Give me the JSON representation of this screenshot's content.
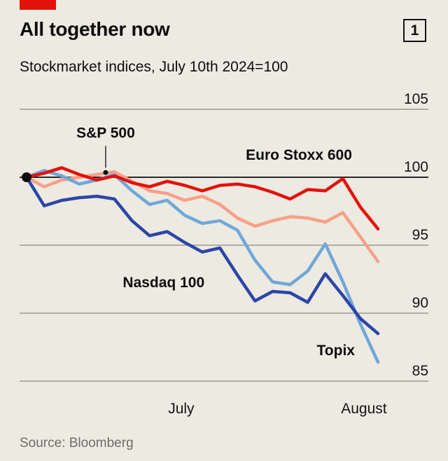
{
  "header": {
    "title": "All together now",
    "figure_number": "1",
    "subtitle": "Stockmarket indices, July 10th 2024=100"
  },
  "footer": {
    "source": "Source: Bloomberg"
  },
  "colors": {
    "background": "#ECEAE1",
    "economist_red": "#E3120B",
    "grid": "#B0ADA1",
    "baseline": "#0F0F0F",
    "text": "#0D0D0D",
    "source_text": "#6E6C66"
  },
  "chart_data": {
    "type": "line",
    "title": "All together now",
    "subtitle": "Stockmarket indices, July 10th 2024=100",
    "index_note": "July 10th 2024=100",
    "ylim": [
      84,
      106
    ],
    "yticks": [
      105,
      100,
      95,
      90,
      85
    ],
    "baseline_value": 100,
    "grid": true,
    "legend_position": "annotations-on-chart",
    "x_axis_labels": [
      {
        "text": "July",
        "x_index": 8.8
      },
      {
        "text": "August",
        "x_index": 19.2
      }
    ],
    "start_marker": {
      "x_index": 0,
      "value": 100
    },
    "series": [
      {
        "name": "S&P 500",
        "color": "#F7A088",
        "values": [
          100,
          99.3,
          99.8,
          100.0,
          100.2,
          100.4,
          99.7,
          99.0,
          98.8,
          98.3,
          98.6,
          98.0,
          97.0,
          96.4,
          96.8,
          97.1,
          97.0,
          96.7,
          97.4,
          95.6,
          93.8
        ]
      },
      {
        "name": "Topix",
        "color": "#6FA7DB",
        "values": [
          100,
          100.5,
          100.1,
          99.5,
          99.8,
          100.2,
          99.0,
          98.0,
          98.3,
          97.2,
          96.6,
          96.8,
          96.1,
          93.9,
          92.3,
          92.1,
          93.1,
          95.1,
          92.3,
          89.2,
          86.4
        ]
      },
      {
        "name": "Nasdaq 100",
        "color": "#2C45A8",
        "values": [
          100,
          97.9,
          98.3,
          98.5,
          98.6,
          98.4,
          96.8,
          95.7,
          96.0,
          95.2,
          94.5,
          94.8,
          92.8,
          90.9,
          91.6,
          91.5,
          90.8,
          92.9,
          91.3,
          89.6,
          88.5
        ]
      },
      {
        "name": "Euro Stoxx 600",
        "color": "#E3120B",
        "values": [
          100,
          100.3,
          100.7,
          100.2,
          99.8,
          100.1,
          99.6,
          99.3,
          99.7,
          99.4,
          99.0,
          99.4,
          99.5,
          99.3,
          98.9,
          98.4,
          99.1,
          99.0,
          99.9,
          97.8,
          96.2
        ]
      }
    ],
    "annotations": [
      {
        "text": "S&P 500",
        "x_index": 4.5,
        "value": 102.9,
        "callout": {
          "from_value": 102.3,
          "to_value": 100.7,
          "dot_value": 100.35
        }
      },
      {
        "text": "Euro Stoxx 600",
        "x_index": 15.5,
        "value": 101.3
      },
      {
        "text": "Nasdaq 100",
        "x_index": 7.8,
        "value": 91.9
      },
      {
        "text": "Topix",
        "x_index": 17.6,
        "value": 86.9
      }
    ]
  }
}
